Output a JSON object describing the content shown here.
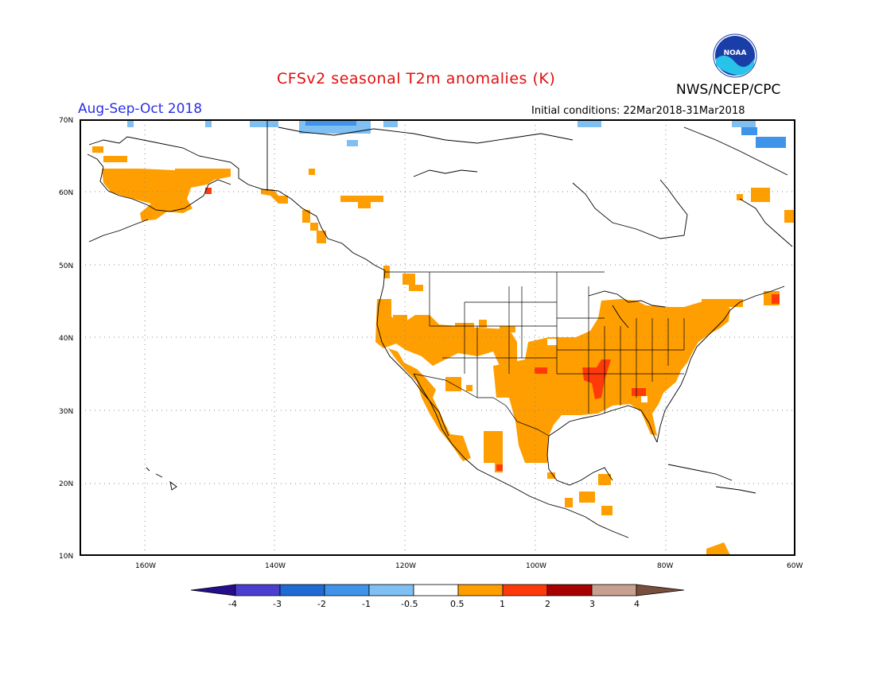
{
  "header": {
    "title": "CFSv2 seasonal T2m anomalies (K)",
    "season": "Aug-Sep-Oct 2018",
    "initial_conditions": "Initial conditions: 22Mar2018-31Mar2018",
    "agency": "NWS/NCEP/CPC",
    "logo_text": "NOAA"
  },
  "map": {
    "projection": "lat-lon",
    "lon_range": [
      -170,
      -60
    ],
    "lat_range": [
      10,
      70
    ],
    "lat_ticks": [
      "10N",
      "20N",
      "30N",
      "40N",
      "50N",
      "60N",
      "70N"
    ],
    "lon_ticks": [
      "160W",
      "140W",
      "120W",
      "100W",
      "80W",
      "60W"
    ],
    "gridlines": "dotted"
  },
  "colorbar": {
    "labels": [
      "-4",
      "-3",
      "-2",
      "-1",
      "-0.5",
      "0.5",
      "1",
      "2",
      "3",
      "4"
    ],
    "colors": [
      "#240e8c",
      "#4a3fd0",
      "#1f6ad4",
      "#3f93e8",
      "#7fbff2",
      "#ffffff",
      "#ff9e00",
      "#ff3a0a",
      "#a80000",
      "#c8a090",
      "#7a4e3c"
    ]
  },
  "anomaly_regions": {
    "warm_05_1": "#ff9e00",
    "warm_1_2": "#ff3a0a",
    "cool_05_1": "#7fbff2",
    "cool_1_2": "#3f93e8"
  }
}
